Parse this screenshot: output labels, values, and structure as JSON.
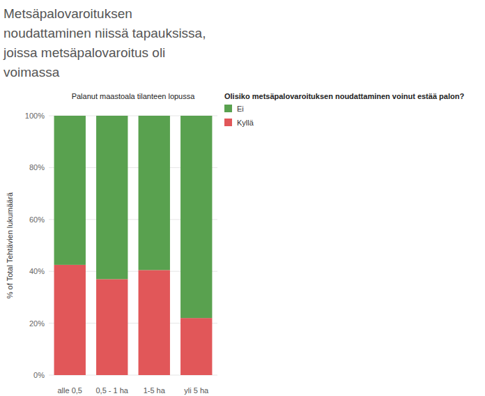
{
  "chart_data": {
    "type": "bar",
    "stacked": true,
    "title": "Metsäpalovaroituksen noudattaminen niissä tapauksissa, joissa metsäpalovaroitus oli voimassa",
    "x_label": "Palanut maastoala tilanteen lopussa",
    "y_label": "% of Total Tehtävien lukumäärä",
    "legend_title": "Olisiko metsäpalovaroituksen noudattaminen voinut estää palon?",
    "legend": "top-right",
    "grid": true,
    "categories": [
      "alle 0,5",
      "0,5 - 1 ha",
      "1-5 ha",
      "yli 5 ha"
    ],
    "series": [
      {
        "name": "Ei",
        "color": "#59a14f",
        "values": [
          57.5,
          63,
          59.5,
          78
        ]
      },
      {
        "name": "Kyllä",
        "color": "#e15759",
        "values": [
          42.5,
          37,
          40.5,
          22
        ]
      }
    ],
    "ylim": [
      0,
      100
    ],
    "yticks": [
      {
        "value": 0,
        "label": "0%"
      },
      {
        "value": 20,
        "label": "20%"
      },
      {
        "value": 40,
        "label": "40%"
      },
      {
        "value": 60,
        "label": "60%"
      },
      {
        "value": 80,
        "label": "80%"
      },
      {
        "value": 100,
        "label": "100%"
      }
    ]
  }
}
